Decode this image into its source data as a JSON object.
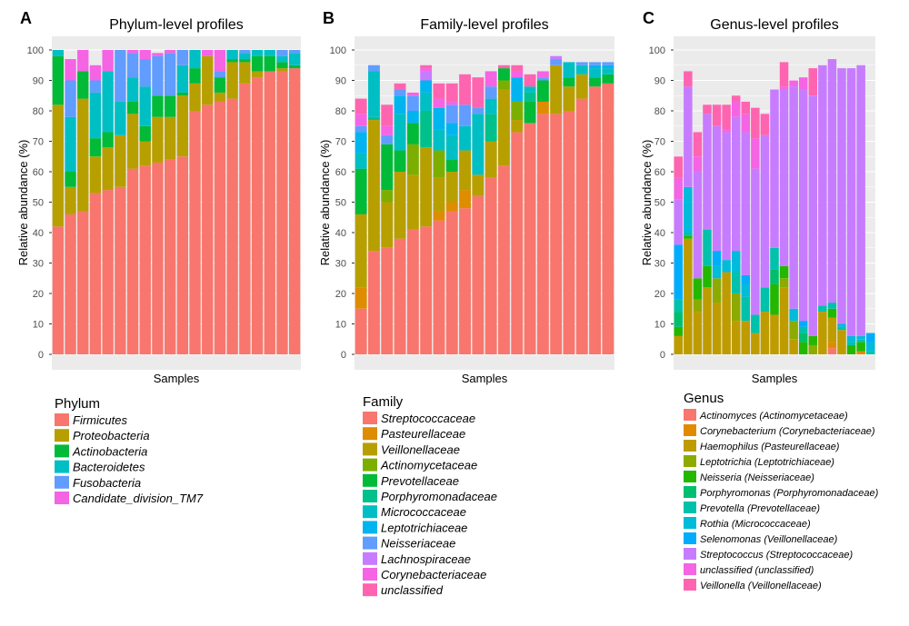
{
  "chart_data": [
    {
      "type": "bar",
      "stacked": true,
      "panel": "A",
      "title": "Phylum-level profiles",
      "xlabel": "Samples",
      "ylabel": "Relative abundance (%)",
      "ylim": [
        0,
        105
      ],
      "yticks": [
        0,
        10,
        20,
        30,
        40,
        50,
        60,
        70,
        80,
        90,
        100
      ],
      "legend_title": "Phylum",
      "legend_position": "bottom-left",
      "series": [
        {
          "name": "Firmicutes",
          "color": "#F8766D",
          "values": [
            42,
            46,
            47,
            53,
            54,
            55,
            61,
            62,
            63,
            64,
            65,
            80,
            82,
            83,
            84,
            89,
            91,
            93,
            93,
            94
          ]
        },
        {
          "name": "Proteobacteria",
          "color": "#B79F00",
          "values": [
            40,
            9,
            37,
            12,
            14,
            17,
            18,
            8,
            15,
            14,
            20,
            9,
            16,
            3,
            12,
            7,
            2,
            0,
            1,
            0
          ]
        },
        {
          "name": "Actinobacteria",
          "color": "#00BA38",
          "values": [
            16,
            5,
            9,
            6,
            5,
            0,
            4,
            5,
            7,
            7,
            1,
            5,
            0,
            5,
            1,
            1,
            5,
            5,
            2,
            1
          ]
        },
        {
          "name": "Bacteroidetes",
          "color": "#00BFC4",
          "values": [
            2,
            18,
            0,
            15,
            20,
            11,
            8,
            13,
            0,
            0,
            9,
            6,
            0,
            0,
            3,
            2,
            2,
            2,
            2,
            4
          ]
        },
        {
          "name": "Fusobacteria",
          "color": "#619CFF",
          "values": [
            0,
            12,
            0,
            4,
            0,
            17,
            8,
            9,
            13,
            14,
            5,
            0,
            0,
            2,
            0,
            1,
            0,
            0,
            2,
            1
          ]
        },
        {
          "name": "Candidate_division_TM7",
          "color": "#F564E3",
          "values": [
            0,
            7,
            7,
            5,
            7,
            0,
            1,
            3,
            1,
            1,
            0,
            0,
            2,
            7,
            0,
            0,
            0,
            0,
            0,
            0
          ]
        }
      ]
    },
    {
      "type": "bar",
      "stacked": true,
      "panel": "B",
      "title": "Family-level profiles",
      "xlabel": "Samples",
      "ylabel": "Relative abundance (%)",
      "ylim": [
        0,
        102
      ],
      "yticks": [
        0,
        10,
        20,
        30,
        40,
        50,
        60,
        70,
        80,
        90,
        100
      ],
      "legend_title": "Family",
      "legend_position": "bottom-left",
      "series": [
        {
          "name": "Streptococcaceae",
          "color": "#F8766D",
          "values": [
            15,
            34,
            35,
            38,
            41,
            42,
            44,
            47,
            48,
            52,
            58,
            62,
            73,
            76,
            79,
            79,
            80,
            84,
            88,
            89
          ]
        },
        {
          "name": "Pasteurellaceae",
          "color": "#DE8C00",
          "values": [
            7,
            0,
            0,
            0,
            0,
            0,
            3,
            3,
            6,
            0,
            0,
            0,
            0,
            0,
            4,
            0,
            0,
            0,
            0,
            0
          ]
        },
        {
          "name": "Veillonellaceae",
          "color": "#B79F00",
          "values": [
            24,
            43,
            15,
            22,
            18,
            26,
            11,
            10,
            13,
            7,
            12,
            25,
            4,
            0,
            0,
            16,
            8,
            8,
            0,
            0
          ]
        },
        {
          "name": "Actinomycetaceae",
          "color": "#7CAE00",
          "values": [
            0,
            0,
            4,
            0,
            10,
            0,
            9,
            0,
            0,
            0,
            0,
            3,
            6,
            0,
            0,
            0,
            0,
            0,
            0,
            0
          ]
        },
        {
          "name": "Prevotellaceae",
          "color": "#00BA38",
          "values": [
            15,
            0,
            15,
            7,
            7,
            0,
            0,
            4,
            0,
            0,
            0,
            4,
            0,
            7,
            7,
            0,
            3,
            0,
            3,
            3
          ]
        },
        {
          "name": "Porphyromonadaceae",
          "color": "#00C08B",
          "values": [
            0,
            1,
            0,
            0,
            0,
            12,
            0,
            0,
            0,
            0,
            9,
            0,
            0,
            3,
            0,
            0,
            0,
            0,
            0,
            0
          ]
        },
        {
          "name": "Micrococcaceae",
          "color": "#00BFC4",
          "values": [
            5,
            15,
            0,
            12,
            0,
            6,
            7,
            8,
            8,
            20,
            5,
            0,
            0,
            2,
            0,
            0,
            5,
            3,
            3,
            2
          ]
        },
        {
          "name": "Leptotrichiaceae",
          "color": "#00B4F0",
          "values": [
            7,
            0,
            0,
            6,
            4,
            4,
            7,
            4,
            0,
            0,
            0,
            0,
            8,
            0,
            0,
            0,
            0,
            0,
            1,
            1
          ]
        },
        {
          "name": "Neisseriaceae",
          "color": "#619CFF",
          "values": [
            2,
            2,
            3,
            2,
            5,
            0,
            0,
            6,
            7,
            2,
            4,
            0,
            0,
            0,
            1,
            2,
            0,
            1,
            1,
            1
          ]
        },
        {
          "name": "Lachnospiraceae",
          "color": "#C77CFF",
          "values": [
            0,
            0,
            0,
            0,
            0,
            3,
            0,
            0,
            0,
            0,
            0,
            0,
            0,
            0,
            0,
            1,
            0,
            0,
            0,
            0
          ]
        },
        {
          "name": "Corynebacteriaceae",
          "color": "#F564E3",
          "values": [
            4,
            0,
            3,
            0,
            1,
            1,
            3,
            1,
            0,
            0,
            5,
            0,
            2,
            0,
            2,
            0,
            0,
            0,
            0,
            0
          ]
        },
        {
          "name": "unclassified",
          "color": "#FF64B0",
          "values": [
            5,
            0,
            7,
            2,
            0,
            1,
            5,
            6,
            10,
            10,
            0,
            1,
            2,
            4,
            0,
            0,
            0,
            0,
            0,
            0
          ]
        }
      ]
    },
    {
      "type": "bar",
      "stacked": true,
      "panel": "C",
      "title": "Genus-level profiles",
      "xlabel": "Samples",
      "ylabel": "Relative abundance (%)",
      "ylim": [
        0,
        102
      ],
      "yticks": [
        0,
        10,
        20,
        30,
        40,
        50,
        60,
        70,
        80,
        90,
        100
      ],
      "legend_title": "Genus",
      "legend_position": "bottom-left",
      "series": [
        {
          "name": "Actinomyces (Actinomycetaceae)",
          "color": "#F8766D",
          "values": [
            0,
            0,
            0,
            0,
            0,
            0,
            0,
            0,
            0,
            0,
            0,
            0,
            0,
            0,
            0,
            0,
            2,
            0,
            0,
            0,
            0
          ]
        },
        {
          "name": "Corynebacterium (Corynebacteriaceae)",
          "color": "#E18A00",
          "values": [
            0,
            0,
            0,
            0,
            0,
            0,
            0,
            0,
            0,
            0,
            0,
            0,
            0,
            0,
            0,
            0,
            2,
            0,
            0,
            1,
            0
          ]
        },
        {
          "name": "Haemophilus (Pasteurellaceae)",
          "color": "#BE9C00",
          "values": [
            6,
            38,
            14,
            22,
            17,
            27,
            11,
            11,
            7,
            14,
            13,
            22,
            5,
            0,
            0,
            14,
            8,
            8,
            0,
            0,
            0
          ]
        },
        {
          "name": "Leptotrichia (Leptotrichiaceae)",
          "color": "#8CAB00",
          "values": [
            0,
            0,
            4,
            0,
            8,
            0,
            9,
            0,
            0,
            0,
            0,
            3,
            6,
            0,
            3,
            0,
            0,
            0,
            0,
            0,
            0
          ]
        },
        {
          "name": "Neisseria (Neisseriaceae)",
          "color": "#24B700",
          "values": [
            3,
            1,
            7,
            7,
            0,
            0,
            0,
            0,
            0,
            0,
            10,
            4,
            0,
            4,
            3,
            0,
            3,
            0,
            3,
            3,
            0
          ]
        },
        {
          "name": "Porphyromonas (Porphyromonadaceae)",
          "color": "#00BE70",
          "values": [
            5,
            0,
            0,
            0,
            0,
            0,
            0,
            0,
            0,
            0,
            5,
            0,
            0,
            3,
            0,
            0,
            0,
            0,
            0,
            0,
            0
          ]
        },
        {
          "name": "Prevotella (Prevotellaceae)",
          "color": "#00C1AB",
          "values": [
            4,
            1,
            0,
            12,
            0,
            0,
            7,
            8,
            6,
            8,
            7,
            0,
            0,
            2,
            0,
            2,
            2,
            1,
            1,
            1,
            1
          ]
        },
        {
          "name": "Rothia (Micrococcaceae)",
          "color": "#00BBDA",
          "values": [
            0,
            15,
            0,
            0,
            4,
            4,
            7,
            4,
            0,
            0,
            0,
            0,
            4,
            0,
            0,
            0,
            0,
            1,
            2,
            1,
            3
          ]
        },
        {
          "name": "Selenomonas (Veillonellaceae)",
          "color": "#00ACFC",
          "values": [
            18,
            0,
            0,
            0,
            5,
            0,
            0,
            3,
            0,
            0,
            0,
            0,
            0,
            2,
            0,
            0,
            0,
            0,
            0,
            0,
            3
          ]
        },
        {
          "name": "Streptococcus (Streptococcaceae)",
          "color": "#C77CFF",
          "values": [
            15,
            33,
            35,
            38,
            41,
            42,
            44,
            47,
            48,
            50,
            52,
            58,
            73,
            76,
            79,
            79,
            80,
            84,
            88,
            89,
            0
          ]
        },
        {
          "name": "unclassified (unclassified)",
          "color": "#F564E3",
          "values": [
            7,
            0,
            5,
            0,
            0,
            1,
            5,
            6,
            10,
            0,
            0,
            1,
            2,
            4,
            0,
            0,
            0,
            0,
            0,
            0,
            0
          ]
        },
        {
          "name": "Veillonella (Veillonellaceae)",
          "color": "#FF64B0",
          "values": [
            7,
            5,
            8,
            3,
            7,
            8,
            2,
            4,
            10,
            7,
            0,
            8,
            0,
            0,
            9,
            0,
            0,
            0,
            0,
            0,
            0
          ]
        }
      ]
    }
  ]
}
